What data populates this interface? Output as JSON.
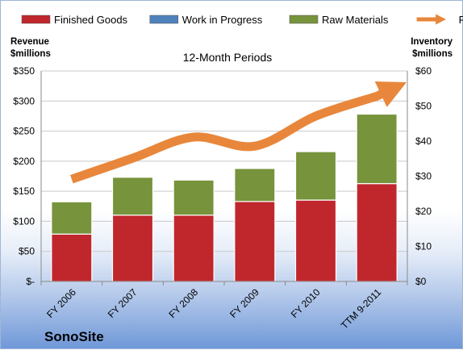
{
  "chart_data": {
    "type": "bar",
    "title": "12-Month Periods",
    "categories": [
      "FY 2006",
      "FY 2007",
      "FY 2008",
      "FY 2009",
      "FY 2010",
      "TTM 9-2011"
    ],
    "series": [
      {
        "name": "Finished Goods",
        "axis": "right",
        "color": "#c0272d",
        "values": [
          13.5,
          18.9,
          18.9,
          22.8,
          23.2,
          27.9
        ]
      },
      {
        "name": "Work in Progress",
        "axis": "right",
        "color": "#4f81bd",
        "values": [
          0,
          0,
          0,
          0,
          0,
          0
        ]
      },
      {
        "name": "Raw Materials",
        "axis": "right",
        "color": "#77933c",
        "values": [
          9.2,
          10.8,
          10.0,
          9.4,
          13.8,
          19.8
        ]
      },
      {
        "name": "Revenue",
        "axis": "left",
        "color": "#e8873b",
        "type": "line",
        "values": [
          170,
          205,
          240,
          225,
          275,
          308
        ]
      }
    ],
    "left_axis": {
      "label": [
        "Revenue",
        "$millions"
      ],
      "ylim": [
        0,
        350
      ],
      "ticks": [
        "$-",
        "$50",
        "$100",
        "$150",
        "$200",
        "$250",
        "$300",
        "$350"
      ]
    },
    "right_axis": {
      "label": [
        "Inventory",
        "$millions"
      ],
      "ylim": [
        0,
        60
      ],
      "ticks": [
        "$0",
        "$10",
        "$20",
        "$30",
        "$40",
        "$50",
        "$60"
      ]
    },
    "grid": true,
    "legend_position": "top",
    "stacked": true
  },
  "brand": "SonoSite"
}
